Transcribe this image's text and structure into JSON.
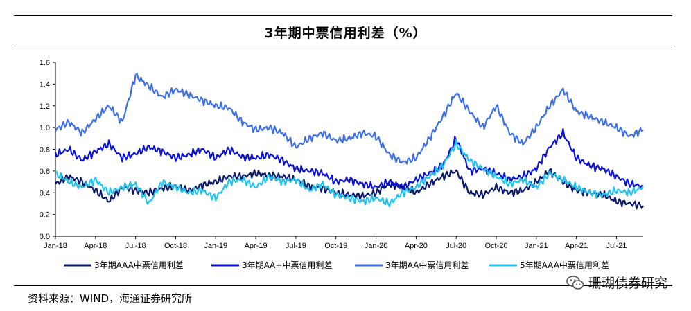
{
  "header": {
    "title": "3年期中票信用利差（%）"
  },
  "footer": {
    "source": "资料来源：WIND，海通证券研究所",
    "watermark": "珊瑚债券研究"
  },
  "chart_data": {
    "type": "line",
    "title": "3年期中票信用利差（%）",
    "xlabel": "",
    "ylabel": "",
    "ylim": [
      0,
      1.6
    ],
    "yticks": [
      "0.0",
      "0.2",
      "0.4",
      "0.6",
      "0.8",
      "1.0",
      "1.2",
      "1.4",
      "1.6"
    ],
    "x_index_max": 44,
    "xtick_labels": [
      "Jan-18",
      "Apr-18",
      "Jul-18",
      "Oct-18",
      "Jan-19",
      "Apr-19",
      "Jul-19",
      "Oct-19",
      "Jan-20",
      "Apr-20",
      "Jul-20",
      "Oct-20",
      "Jan-21",
      "Apr-21",
      "Jul-21"
    ],
    "legend_position": "bottom",
    "series": [
      {
        "name": "3年期AAA中票信用利差",
        "color": "#0b1a6e",
        "values": [
          0.48,
          0.55,
          0.5,
          0.42,
          0.32,
          0.45,
          0.42,
          0.4,
          0.44,
          0.46,
          0.42,
          0.47,
          0.5,
          0.55,
          0.55,
          0.58,
          0.56,
          0.55,
          0.52,
          0.46,
          0.44,
          0.4,
          0.38,
          0.37,
          0.4,
          0.48,
          0.45,
          0.4,
          0.48,
          0.55,
          0.6,
          0.4,
          0.38,
          0.45,
          0.4,
          0.42,
          0.5,
          0.6,
          0.5,
          0.42,
          0.4,
          0.38,
          0.32,
          0.3,
          0.28
        ]
      },
      {
        "name": "3年期AA+中票信用利差",
        "color": "#0a11d6",
        "values": [
          0.75,
          0.8,
          0.7,
          0.78,
          0.85,
          0.72,
          0.76,
          0.82,
          0.78,
          0.72,
          0.75,
          0.8,
          0.72,
          0.8,
          0.73,
          0.72,
          0.75,
          0.7,
          0.62,
          0.6,
          0.58,
          0.5,
          0.52,
          0.48,
          0.45,
          0.5,
          0.45,
          0.52,
          0.58,
          0.65,
          0.9,
          0.6,
          0.62,
          0.58,
          0.52,
          0.55,
          0.62,
          0.82,
          0.95,
          0.72,
          0.65,
          0.62,
          0.55,
          0.48,
          0.46
        ]
      },
      {
        "name": "3年期AA中票信用利差",
        "color": "#3c6ee6",
        "values": [
          0.98,
          1.05,
          0.95,
          1.08,
          1.2,
          1.05,
          1.48,
          1.38,
          1.28,
          1.35,
          1.3,
          1.25,
          1.2,
          1.18,
          1.05,
          0.98,
          1.0,
          0.95,
          0.82,
          0.9,
          0.95,
          0.88,
          0.9,
          0.95,
          0.92,
          0.75,
          0.68,
          0.72,
          0.9,
          1.1,
          1.32,
          1.15,
          1.0,
          1.2,
          0.95,
          0.85,
          1.0,
          1.2,
          1.35,
          1.15,
          1.1,
          1.05,
          1.0,
          0.92,
          0.98
        ]
      },
      {
        "name": "5年期AAA中票信用利差",
        "color": "#1fc4ee",
        "values": [
          0.58,
          0.5,
          0.45,
          0.52,
          0.4,
          0.45,
          0.48,
          0.3,
          0.5,
          0.45,
          0.4,
          0.42,
          0.35,
          0.5,
          0.52,
          0.45,
          0.55,
          0.5,
          0.52,
          0.42,
          0.48,
          0.38,
          0.35,
          0.32,
          0.35,
          0.3,
          0.4,
          0.45,
          0.55,
          0.65,
          0.85,
          0.7,
          0.62,
          0.55,
          0.48,
          0.52,
          0.45,
          0.58,
          0.52,
          0.45,
          0.4,
          0.38,
          0.42,
          0.4,
          0.45
        ]
      }
    ]
  }
}
